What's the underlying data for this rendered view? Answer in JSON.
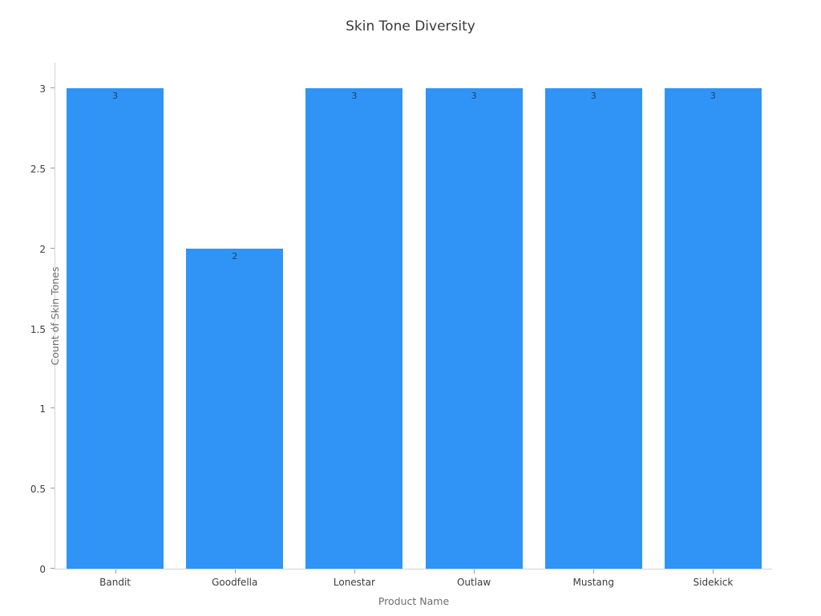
{
  "chart_data": {
    "type": "bar",
    "title": "Skin Tone Diversity",
    "xlabel": "Product Name",
    "ylabel": "Count of Skin Tones",
    "categories": [
      "Bandit",
      "Goodfella",
      "Lonestar",
      "Outlaw",
      "Mustang",
      "Sidekick"
    ],
    "values": [
      3,
      2,
      3,
      3,
      3,
      3
    ],
    "bar_labels": [
      "3",
      "2",
      "3",
      "3",
      "3",
      "3"
    ],
    "yticks": [
      {
        "value": 0,
        "label": "0"
      },
      {
        "value": 0.5,
        "label": "0.5"
      },
      {
        "value": 1,
        "label": "1"
      },
      {
        "value": 1.5,
        "label": "1.5"
      },
      {
        "value": 2,
        "label": "2"
      },
      {
        "value": 2.5,
        "label": "2.5"
      },
      {
        "value": 3,
        "label": "3"
      }
    ],
    "ylim": [
      0,
      3.1667
    ],
    "grid": false,
    "legend": "none",
    "bar_color": "#2F94F6"
  }
}
